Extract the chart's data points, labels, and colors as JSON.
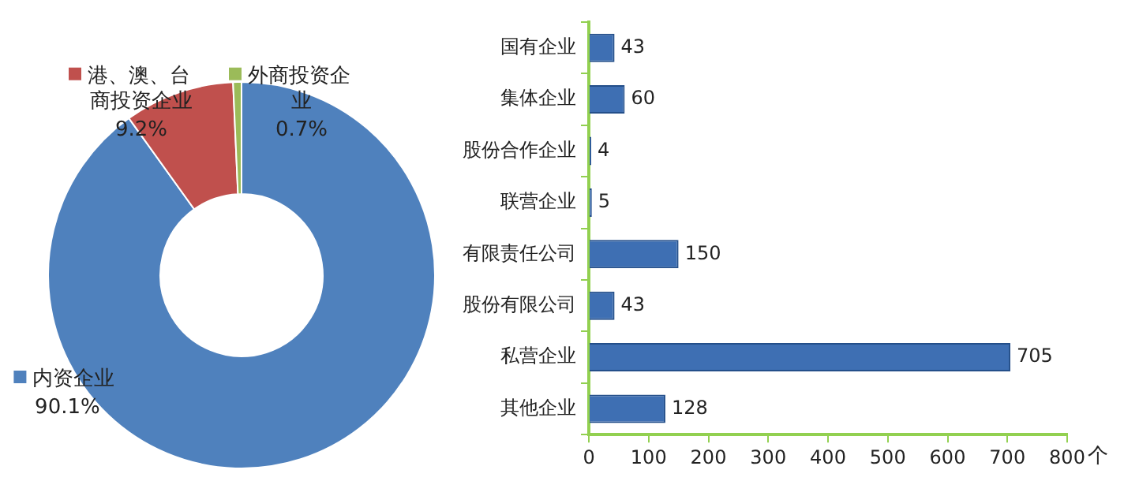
{
  "chart_data": [
    {
      "type": "donut",
      "categories": [
        "内资企业",
        "港、澳、台商投资企业",
        "外商投资企业"
      ],
      "values": [
        90.1,
        9.2,
        0.7
      ],
      "colors": [
        "#4f81bd",
        "#c0504d",
        "#9bbb59"
      ],
      "value_labels": [
        "90.1%",
        "9.2%",
        "0.7%"
      ],
      "legend": "top"
    },
    {
      "type": "bar",
      "orientation": "horizontal",
      "categories": [
        "国有企业",
        "集体企业",
        "股份合作企业",
        "联营企业",
        "有限责任公司",
        "股份有限公司",
        "私营企业",
        "其他企业"
      ],
      "values": [
        43,
        60,
        4,
        5,
        150,
        43,
        705,
        128
      ],
      "color": "#3e6fb3",
      "xlabel": "个",
      "xlim": [
        0,
        800
      ],
      "xticks": [
        0,
        100,
        200,
        300,
        400,
        500,
        600,
        700,
        800
      ],
      "data_labels": true,
      "grid": false,
      "legend": false
    }
  ]
}
